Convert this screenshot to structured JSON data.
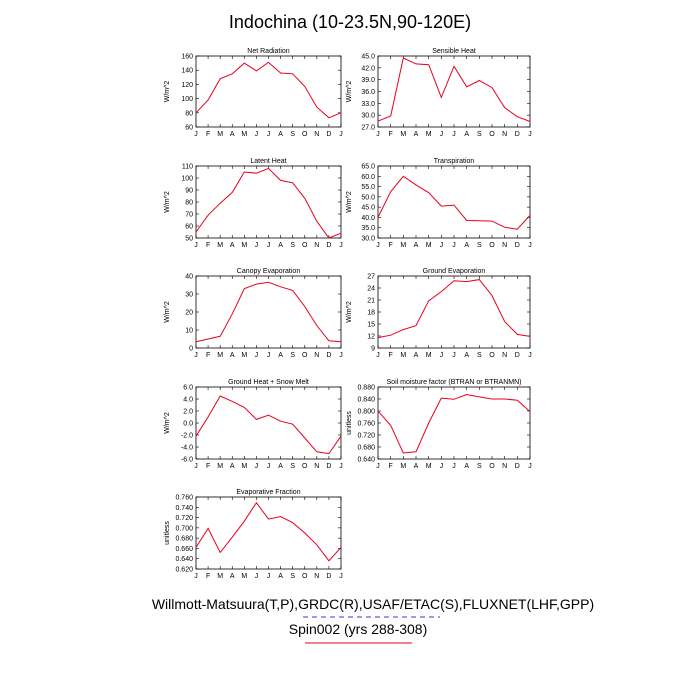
{
  "title": "Indochina (10-23.5N,90-120E)",
  "footer": {
    "line1": "Willmott-Matsuura(T,P),GRDC(R),USAF/ETAC(S),FLUXNET(LHF,GPP)",
    "line2": "Spin002 (yrs 288-308)"
  },
  "colors": {
    "line": "#e8001c",
    "axis": "#000000",
    "background": "#ffffff"
  },
  "chart_data": [
    {
      "type": "line",
      "title": "Net Radiation",
      "ylabel": "W/m^2",
      "categories": [
        "J",
        "F",
        "M",
        "A",
        "M",
        "J",
        "J",
        "A",
        "S",
        "O",
        "N",
        "D",
        "J"
      ],
      "ylim": [
        60,
        160
      ],
      "yticks": [
        "60",
        "80",
        "100",
        "120",
        "140",
        "160"
      ],
      "values": [
        80,
        98,
        128,
        135,
        150,
        139,
        151,
        136,
        135,
        117,
        88,
        73,
        80
      ]
    },
    {
      "type": "line",
      "title": "Sensible Heat",
      "ylabel": "W/m^2",
      "categories": [
        "J",
        "F",
        "M",
        "A",
        "M",
        "J",
        "J",
        "A",
        "S",
        "O",
        "N",
        "D",
        "J"
      ],
      "ylim": [
        27,
        45
      ],
      "yticks": [
        "27.0",
        "30.0",
        "33.0",
        "36.0",
        "39.0",
        "42.0",
        "45.0"
      ],
      "values": [
        28.5,
        29.8,
        44.5,
        43.0,
        42.8,
        34.5,
        42.4,
        37.2,
        38.8,
        37.0,
        31.9,
        29.6,
        28.4
      ]
    },
    {
      "type": "line",
      "title": "Latent Heat",
      "ylabel": "W/m^2",
      "categories": [
        "J",
        "F",
        "M",
        "A",
        "M",
        "J",
        "J",
        "A",
        "S",
        "O",
        "N",
        "D",
        "J"
      ],
      "ylim": [
        50,
        110
      ],
      "yticks": [
        "50",
        "60",
        "70",
        "80",
        "90",
        "100",
        "110"
      ],
      "values": [
        55,
        69,
        79,
        88,
        105,
        104,
        108,
        98,
        96,
        83,
        64,
        50,
        54
      ]
    },
    {
      "type": "line",
      "title": "Transpiration",
      "ylabel": "W/m^2",
      "categories": [
        "J",
        "F",
        "M",
        "A",
        "M",
        "J",
        "J",
        "A",
        "S",
        "O",
        "N",
        "D",
        "J"
      ],
      "ylim": [
        30,
        65
      ],
      "yticks": [
        "30.0",
        "35.0",
        "40.0",
        "45.0",
        "50.0",
        "55.0",
        "60.0",
        "65.0"
      ],
      "values": [
        40.0,
        52.5,
        60.0,
        55.8,
        52.0,
        45.5,
        46.0,
        38.5,
        38.4,
        38.2,
        35.2,
        34.3,
        41.0
      ]
    },
    {
      "type": "line",
      "title": "Canopy Evaporation",
      "ylabel": "W/m^2",
      "categories": [
        "J",
        "F",
        "M",
        "A",
        "M",
        "J",
        "J",
        "A",
        "S",
        "O",
        "N",
        "D",
        "J"
      ],
      "ylim": [
        0,
        40
      ],
      "yticks": [
        "0",
        "10",
        "20",
        "30",
        "40"
      ],
      "values": [
        3.5,
        5.0,
        6.5,
        19.0,
        33.0,
        35.5,
        36.5,
        34.0,
        32.0,
        23.0,
        12.5,
        4.0,
        3.5
      ]
    },
    {
      "type": "line",
      "title": "Ground Evaporation",
      "ylabel": "W/m^2",
      "categories": [
        "J",
        "F",
        "M",
        "A",
        "M",
        "J",
        "J",
        "A",
        "S",
        "O",
        "N",
        "D",
        "J"
      ],
      "ylim": [
        9,
        27
      ],
      "yticks": [
        "9",
        "12",
        "15",
        "18",
        "21",
        "24",
        "27"
      ],
      "values": [
        11.6,
        12.2,
        13.6,
        14.6,
        20.8,
        23.1,
        25.8,
        25.6,
        26.1,
        22.1,
        15.6,
        12.4,
        11.9
      ]
    },
    {
      "type": "line",
      "title": "Ground Heat + Snow Melt",
      "ylabel": "W/m^2",
      "categories": [
        "J",
        "F",
        "M",
        "A",
        "M",
        "J",
        "J",
        "A",
        "S",
        "O",
        "N",
        "D",
        "J"
      ],
      "ylim": [
        -6,
        6
      ],
      "yticks": [
        "-6.0",
        "-4.0",
        "-2.0",
        "0.0",
        "2.0",
        "4.0",
        "6.0"
      ],
      "values": [
        -2.2,
        1.0,
        4.5,
        3.6,
        2.6,
        0.6,
        1.3,
        0.3,
        -0.2,
        -2.5,
        -4.8,
        -5.1,
        -2.2
      ]
    },
    {
      "type": "line",
      "title": "Soil moisture factor (BTRAN or BTRANMN)",
      "ylabel": "unitless",
      "categories": [
        "J",
        "F",
        "M",
        "A",
        "M",
        "J",
        "J",
        "A",
        "S",
        "O",
        "N",
        "D",
        "J"
      ],
      "ylim": [
        0.64,
        0.88
      ],
      "yticks": [
        "0.640",
        "0.680",
        "0.720",
        "0.760",
        "0.800",
        "0.840",
        "0.880"
      ],
      "values": [
        0.8,
        0.752,
        0.66,
        0.664,
        0.76,
        0.843,
        0.839,
        0.855,
        0.847,
        0.84,
        0.84,
        0.836,
        0.798
      ]
    },
    {
      "type": "line",
      "title": "Evaporative Fraction",
      "ylabel": "unitless",
      "categories": [
        "J",
        "F",
        "M",
        "A",
        "M",
        "J",
        "J",
        "A",
        "S",
        "O",
        "N",
        "D",
        "J"
      ],
      "ylim": [
        0.62,
        0.76
      ],
      "yticks": [
        "0.620",
        "0.640",
        "0.660",
        "0.680",
        "0.700",
        "0.720",
        "0.740",
        "0.760"
      ],
      "values": [
        0.662,
        0.699,
        0.652,
        0.682,
        0.713,
        0.749,
        0.717,
        0.722,
        0.71,
        0.69,
        0.667,
        0.636,
        0.662
      ]
    }
  ]
}
